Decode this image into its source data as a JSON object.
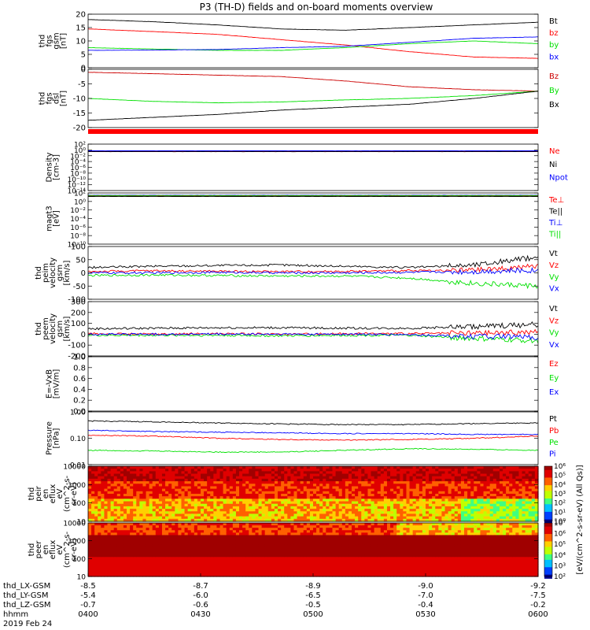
{
  "title": "P3 (TH-D) fields and on-board moments overview",
  "colors": {
    "black": "#000000",
    "red": "#ff0000",
    "darkred": "#cc0000",
    "green": "#00e000",
    "blue": "#0000ff"
  },
  "time_axis": {
    "ticks": [
      "0400",
      "0430",
      "0500",
      "0530",
      "0600"
    ],
    "ephemeris": [
      {
        "label": "thd_LX-GSM",
        "values": [
          "-8.5",
          "-8.7",
          "-8.9",
          "-9.0",
          "-9.2"
        ]
      },
      {
        "label": "thd_LY-GSM",
        "values": [
          "-5.4",
          "-6.0",
          "-6.5",
          "-7.0",
          "-7.5"
        ]
      },
      {
        "label": "thd_LZ-GSM",
        "values": [
          "-0.7",
          "-0.6",
          "-0.5",
          "-0.4",
          "-0.2"
        ]
      },
      {
        "label": "hhmm",
        "values": [
          "",
          "",
          "",
          "",
          ""
        ]
      }
    ],
    "date": "2019 Feb 24"
  },
  "chart_data": [
    {
      "id": "fgs",
      "type": "line",
      "ylabel": [
        "thd",
        "fgs",
        "gsm",
        "[nT]"
      ],
      "ylim": [
        0,
        20
      ],
      "yticks": [
        "0",
        "5",
        "10",
        "15",
        "20"
      ],
      "legend": [
        {
          "name": "Bt",
          "color": "#000000"
        },
        {
          "name": "bz",
          "color": "#ff0000"
        },
        {
          "name": "by",
          "color": "#00e000"
        },
        {
          "name": "bx",
          "color": "#0000ff"
        }
      ],
      "series": [
        {
          "name": "Bt",
          "color": "#000000",
          "values": [
            18,
            17.2,
            16,
            14.5,
            14,
            15,
            16,
            17
          ]
        },
        {
          "name": "bz",
          "color": "#ff0000",
          "values": [
            14.5,
            13.5,
            12.5,
            10.5,
            8.5,
            6,
            4,
            3.5
          ]
        },
        {
          "name": "by",
          "color": "#00e000",
          "values": [
            7.5,
            7,
            6.5,
            6.5,
            7.5,
            9,
            10,
            9
          ]
        },
        {
          "name": "bx",
          "color": "#0000ff",
          "values": [
            6.5,
            6.6,
            6.8,
            7.5,
            8,
            9.5,
            11,
            11.5
          ]
        }
      ]
    },
    {
      "id": "fgs_dsl",
      "type": "line",
      "ylabel": [
        "thd",
        "fgs",
        "dsl",
        "[nT]"
      ],
      "ylim": [
        -20,
        0
      ],
      "yticks": [
        "-20",
        "-15",
        "-10",
        "-5",
        "0"
      ],
      "legend": [
        {
          "name": "Bz",
          "color": "#cc0000"
        },
        {
          "name": "By",
          "color": "#00e000"
        },
        {
          "name": "Bx",
          "color": "#000000"
        }
      ],
      "series": [
        {
          "name": "Bz",
          "color": "#cc0000",
          "values": [
            -1,
            -1.5,
            -2,
            -2.5,
            -4,
            -6,
            -7,
            -7.5
          ]
        },
        {
          "name": "By",
          "color": "#00e000",
          "values": [
            -10,
            -11,
            -11.5,
            -11.2,
            -10.5,
            -10,
            -9,
            -7.5
          ]
        },
        {
          "name": "Bx",
          "color": "#000000",
          "values": [
            -17.5,
            -16.5,
            -15.5,
            -14,
            -13,
            -12,
            -10,
            -7.5
          ]
        }
      ]
    },
    {
      "id": "density",
      "type": "line",
      "log": true,
      "ylabel": [
        "Density",
        "[cm-3]"
      ],
      "ylim": [
        1e-14,
        100
      ],
      "yticks": [
        "10⁻¹⁴",
        "10⁻¹²",
        "10⁻¹⁰",
        "10⁻⁸",
        "10⁻⁶",
        "10⁻⁴",
        "10⁻²",
        "10⁰",
        "10²"
      ],
      "legend": [
        {
          "name": "Ne",
          "color": "#ff0000"
        },
        {
          "name": "Ni",
          "color": "#000000"
        },
        {
          "name": "Npot",
          "color": "#0000ff"
        }
      ],
      "series": [
        {
          "name": "Ne",
          "color": "#ff0000",
          "values": [
            0.3,
            0.3,
            0.3,
            0.3,
            0.3,
            0.3,
            0.3,
            0.3
          ]
        },
        {
          "name": "Ni",
          "color": "#000000",
          "values": [
            0.25,
            0.25,
            0.25,
            0.25,
            0.25,
            0.25,
            0.25,
            0.25
          ]
        },
        {
          "name": "Npot",
          "color": "#0000ff",
          "values": [
            0.5,
            0.5,
            0.5,
            0.5,
            0.5,
            0.5,
            0.5,
            0.5
          ]
        }
      ]
    },
    {
      "id": "temperature",
      "type": "line",
      "log": true,
      "ylabel": [
        "magt3",
        "[eV]"
      ],
      "ylim": [
        1e-10,
        100
      ],
      "yticks": [
        "10⁻¹⁰",
        "10⁻⁸",
        "10⁻⁶",
        "10⁻⁴",
        "10⁻²",
        "10⁰",
        "10²"
      ],
      "legend": [
        {
          "name": "Te⊥",
          "color": "#ff0000"
        },
        {
          "name": "Te||",
          "color": "#000000"
        },
        {
          "name": "Ti⊥",
          "color": "#0000ff"
        },
        {
          "name": "Ti||",
          "color": "#00e000"
        }
      ],
      "series": [
        {
          "name": "Te⊥",
          "color": "#ff0000",
          "values": [
            20,
            20,
            20,
            20,
            20,
            20,
            20,
            20
          ]
        },
        {
          "name": "Te||",
          "color": "#000000",
          "values": [
            15,
            15,
            15,
            15,
            15,
            15,
            15,
            15
          ]
        },
        {
          "name": "Ti⊥",
          "color": "#0000ff",
          "values": [
            30,
            30,
            30,
            30,
            30,
            30,
            30,
            30
          ]
        },
        {
          "name": "Ti||",
          "color": "#00e000",
          "values": [
            25,
            25,
            25,
            25,
            25,
            25,
            25,
            25
          ]
        }
      ]
    },
    {
      "id": "peim_velocity",
      "type": "line",
      "ylabel": [
        "thd",
        "peim",
        "velocity",
        "gsm",
        "[km/s]"
      ],
      "ylim": [
        -100,
        100
      ],
      "yticks": [
        "-100",
        "-50",
        "0",
        "50",
        "100"
      ],
      "legend": [
        {
          "name": "Vt",
          "color": "#000000"
        },
        {
          "name": "Vz",
          "color": "#ff0000"
        },
        {
          "name": "Vy",
          "color": "#00e000"
        },
        {
          "name": "Vx",
          "color": "#0000ff"
        }
      ],
      "series": [
        {
          "name": "Vt",
          "color": "#000000",
          "values": [
            20,
            25,
            28,
            30,
            25,
            20,
            30,
            60
          ]
        },
        {
          "name": "Vz",
          "color": "#ff0000",
          "values": [
            5,
            8,
            6,
            5,
            6,
            8,
            10,
            25
          ]
        },
        {
          "name": "Vy",
          "color": "#00e000",
          "values": [
            -10,
            -8,
            -10,
            -12,
            -12,
            -20,
            -40,
            -50
          ]
        },
        {
          "name": "Vx",
          "color": "#0000ff",
          "values": [
            0,
            0,
            2,
            0,
            0,
            2,
            5,
            10
          ]
        }
      ]
    },
    {
      "id": "peem_velocity",
      "type": "line",
      "ylabel": [
        "thd",
        "peem",
        "velocity",
        "gsm",
        "[km/s]"
      ],
      "ylim": [
        -200,
        300
      ],
      "yticks": [
        "-200",
        "-100",
        "0",
        "100",
        "200",
        "300"
      ],
      "legend": [
        {
          "name": "Vt",
          "color": "#000000"
        },
        {
          "name": "Vz",
          "color": "#ff0000"
        },
        {
          "name": "Vy",
          "color": "#00e000"
        },
        {
          "name": "Vx",
          "color": "#0000ff"
        }
      ],
      "series": [
        {
          "name": "Vt",
          "color": "#000000",
          "values": [
            50,
            55,
            60,
            60,
            55,
            55,
            70,
            90
          ]
        },
        {
          "name": "Vz",
          "color": "#ff0000",
          "values": [
            5,
            0,
            5,
            0,
            5,
            5,
            10,
            20
          ]
        },
        {
          "name": "Vy",
          "color": "#00e000",
          "values": [
            -10,
            -10,
            -10,
            -15,
            -10,
            -10,
            -40,
            -60
          ]
        },
        {
          "name": "Vx",
          "color": "#0000ff",
          "values": [
            0,
            0,
            0,
            0,
            0,
            -5,
            -20,
            -30
          ]
        }
      ]
    },
    {
      "id": "efield",
      "type": "line",
      "ylabel": [
        "E=-VxB",
        "[mV/m]"
      ],
      "ylim": [
        0,
        1
      ],
      "yticks": [
        "0.0",
        "0.2",
        "0.4",
        "0.6",
        "0.8",
        "1.0"
      ],
      "legend": [
        {
          "name": "Ez",
          "color": "#ff0000"
        },
        {
          "name": "Ey",
          "color": "#00e000"
        },
        {
          "name": "Ex",
          "color": "#0000ff"
        }
      ],
      "series": []
    },
    {
      "id": "pressure",
      "type": "line",
      "log": true,
      "ylabel": [
        "Pressure",
        "[nPa]"
      ],
      "ylim": [
        0.01,
        1
      ],
      "yticks": [
        "0.01",
        "0.10",
        "1.00"
      ],
      "legend": [
        {
          "name": "Pt",
          "color": "#000000"
        },
        {
          "name": "Pb",
          "color": "#ff0000"
        },
        {
          "name": "Pe",
          "color": "#00e000"
        },
        {
          "name": "Pi",
          "color": "#0000ff"
        }
      ],
      "series": [
        {
          "name": "Pt",
          "color": "#000000",
          "values": [
            0.45,
            0.42,
            0.38,
            0.35,
            0.33,
            0.33,
            0.36,
            0.38
          ]
        },
        {
          "name": "Pb",
          "color": "#ff0000",
          "values": [
            0.13,
            0.12,
            0.1,
            0.09,
            0.085,
            0.09,
            0.1,
            0.12
          ]
        },
        {
          "name": "Pe",
          "color": "#00e000",
          "values": [
            0.035,
            0.033,
            0.03,
            0.03,
            0.035,
            0.04,
            0.038,
            0.035
          ]
        },
        {
          "name": "Pi",
          "color": "#0000ff",
          "values": [
            0.2,
            0.18,
            0.17,
            0.16,
            0.15,
            0.15,
            0.14,
            0.14
          ]
        }
      ]
    },
    {
      "id": "peir_spec",
      "type": "heatmap",
      "log": true,
      "ylabel": [
        "thd",
        "peir",
        "en",
        "eflux",
        "eV",
        "(cm^2-s-",
        "sr-eV)"
      ],
      "ylim": [
        5,
        25000
      ],
      "yticks": [
        "10",
        "100",
        "1000",
        "10000"
      ],
      "colorbar": {
        "ticks": [
          "10⁰",
          "10¹",
          "10²",
          "10³",
          "10⁴",
          "10⁵",
          "10⁶"
        ],
        "label": "eV/(cm^2-s-sr-eV)"
      }
    },
    {
      "id": "peer_spec",
      "type": "heatmap",
      "log": true,
      "ylabel": [
        "thd",
        "peer",
        "en",
        "eflux",
        "eV",
        "(cm^2-s-",
        "sr-eV)"
      ],
      "ylim": [
        5,
        25000
      ],
      "yticks": [
        "10",
        "100",
        "1000",
        "10000"
      ],
      "colorbar": {
        "ticks": [
          "10²",
          "10³",
          "10⁴",
          "10⁵",
          "10⁶",
          "10⁷"
        ],
        "label": "eV/(cm^2-s-sr-eV)"
      }
    }
  ],
  "colorbar_label": "[eV/(cm^2-s-sr-eV) (All Qs)]"
}
